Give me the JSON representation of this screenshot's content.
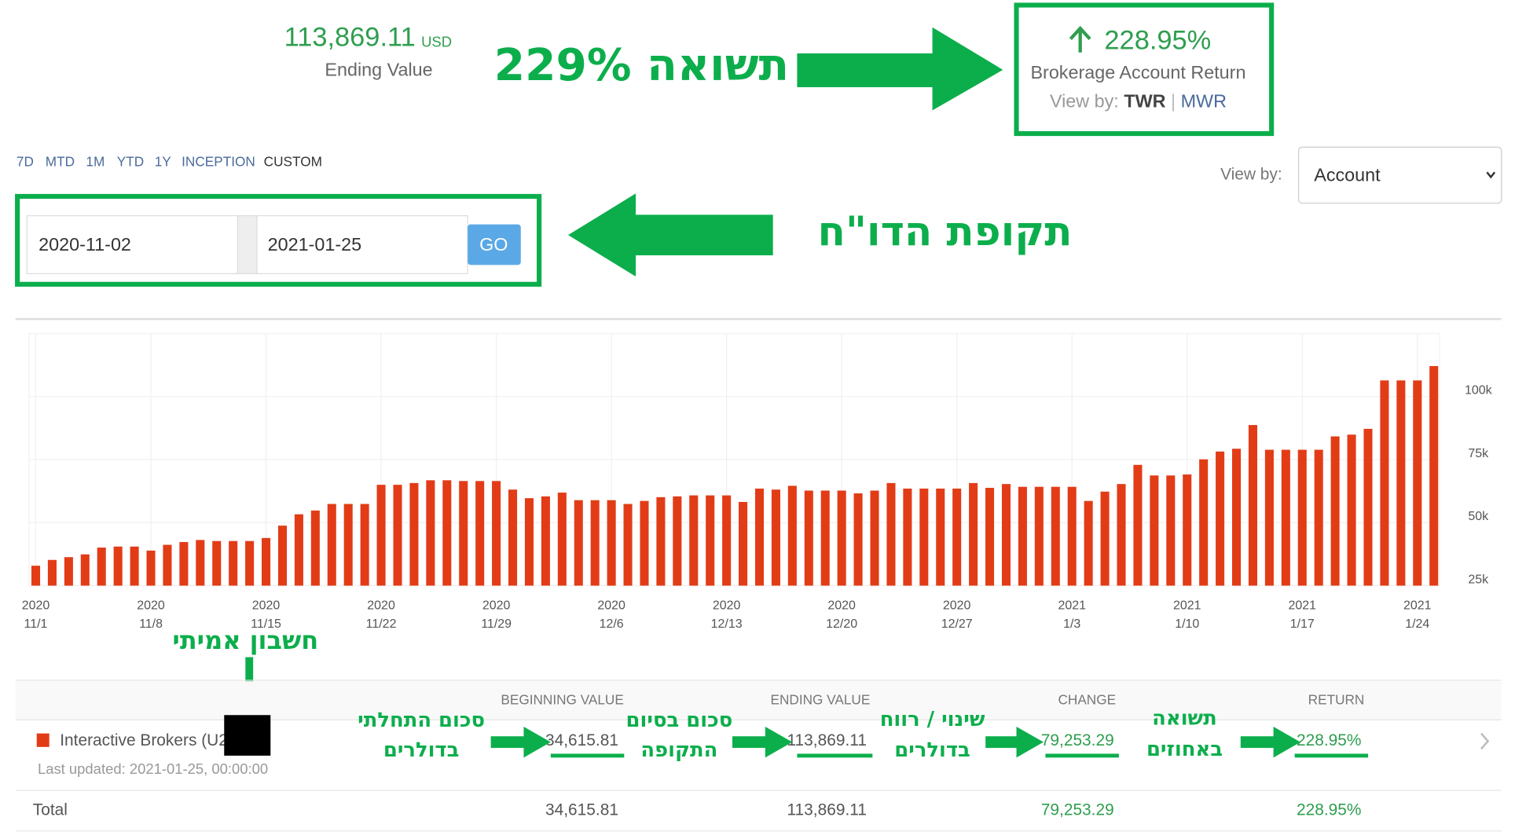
{
  "header": {
    "ending_value": "113,869.11",
    "currency": "USD",
    "ending_value_label": "Ending Value",
    "return": "228.95%",
    "return_label": "Brokerage Account Return",
    "view_by_label": "View by:",
    "view_by_options": [
      "TWR",
      "MWR"
    ],
    "separator": "|"
  },
  "annotations": {
    "headline": "תשואה 229%",
    "period": "תקופת הדו\"ח",
    "real_account": "חשבון אמיתי",
    "beginning": [
      "סכום התחלתי",
      "בדולרים"
    ],
    "ending": [
      "סכום בסיום",
      "התקופה"
    ],
    "change": [
      "שינוי / רווח",
      "בדולרים"
    ],
    "return": [
      "תשואה",
      "באחוזים"
    ]
  },
  "controls": {
    "ranges": [
      "7D",
      "MTD",
      "1M",
      "YTD",
      "1Y",
      "INCEPTION",
      "CUSTOM"
    ],
    "view_by_label": "View by:",
    "view_by_value": "Account",
    "start_date": "2020-11-02",
    "end_date": "2021-01-25",
    "go": "GO"
  },
  "chart_data": {
    "type": "bar",
    "color": "#e23c17",
    "grid": true,
    "categories": [
      {
        "year": "2020",
        "day": "11/1"
      },
      null,
      null,
      null,
      null,
      null,
      null,
      {
        "year": "2020",
        "day": "11/8"
      },
      null,
      null,
      null,
      null,
      null,
      null,
      {
        "year": "2020",
        "day": "11/15"
      },
      null,
      null,
      null,
      null,
      null,
      null,
      {
        "year": "2020",
        "day": "11/22"
      },
      null,
      null,
      null,
      null,
      null,
      null,
      {
        "year": "2020",
        "day": "11/29"
      },
      null,
      null,
      null,
      null,
      null,
      null,
      {
        "year": "2020",
        "day": "12/6"
      },
      null,
      null,
      null,
      null,
      null,
      null,
      {
        "year": "2020",
        "day": "12/13"
      },
      null,
      null,
      null,
      null,
      null,
      null,
      {
        "year": "2020",
        "day": "12/20"
      },
      null,
      null,
      null,
      null,
      null,
      null,
      {
        "year": "2020",
        "day": "12/27"
      },
      null,
      null,
      null,
      null,
      null,
      null,
      {
        "year": "2021",
        "day": "1/3"
      },
      null,
      null,
      null,
      null,
      null,
      null,
      {
        "year": "2021",
        "day": "1/10"
      },
      null,
      null,
      null,
      null,
      null,
      null,
      {
        "year": "2021",
        "day": "1/17"
      },
      null,
      null,
      null,
      null,
      null,
      null,
      {
        "year": "2021",
        "day": "1/24"
      },
      null
    ],
    "values": [
      32900,
      35200,
      36300,
      37400,
      40100,
      40500,
      40500,
      38900,
      41200,
      42300,
      43100,
      42700,
      42700,
      42700,
      43900,
      48800,
      53300,
      54800,
      57400,
      57400,
      57400,
      65000,
      65000,
      65700,
      66800,
      66800,
      66500,
      66500,
      66500,
      63100,
      59700,
      60400,
      61900,
      58900,
      58900,
      58900,
      57400,
      58600,
      60100,
      60400,
      60800,
      60800,
      60800,
      58200,
      63500,
      63100,
      64600,
      62700,
      62700,
      62700,
      61600,
      62700,
      65700,
      63500,
      63500,
      63500,
      63500,
      65700,
      63800,
      65300,
      64200,
      64200,
      64200,
      64200,
      58600,
      62300,
      65300,
      72900,
      68700,
      68700,
      69100,
      75100,
      78200,
      79300,
      88700,
      78900,
      78900,
      78900,
      78900,
      84200,
      84900,
      87200,
      106400,
      106400,
      106400,
      112100
    ],
    "ylim": [
      25000,
      125000
    ],
    "yticks": [
      {
        "value": 25000,
        "label": "25k"
      },
      {
        "value": 50000,
        "label": "50k"
      },
      {
        "value": 75000,
        "label": "75k"
      },
      {
        "value": 100000,
        "label": "100k"
      }
    ]
  },
  "table": {
    "columns": [
      "BEGINNING VALUE",
      "ENDING VALUE",
      "CHANGE",
      "RETURN"
    ],
    "rows": [
      {
        "name": "Interactive Brokers (U28",
        "updated": "Last updated: 2021-01-25, 00:00:00",
        "values": [
          "34,615.81",
          "113,869.11",
          "79,253.29",
          "228.95%"
        ]
      }
    ],
    "total": {
      "label": "Total",
      "values": [
        "34,615.81",
        "113,869.11",
        "79,253.29",
        "228.95%"
      ]
    }
  }
}
